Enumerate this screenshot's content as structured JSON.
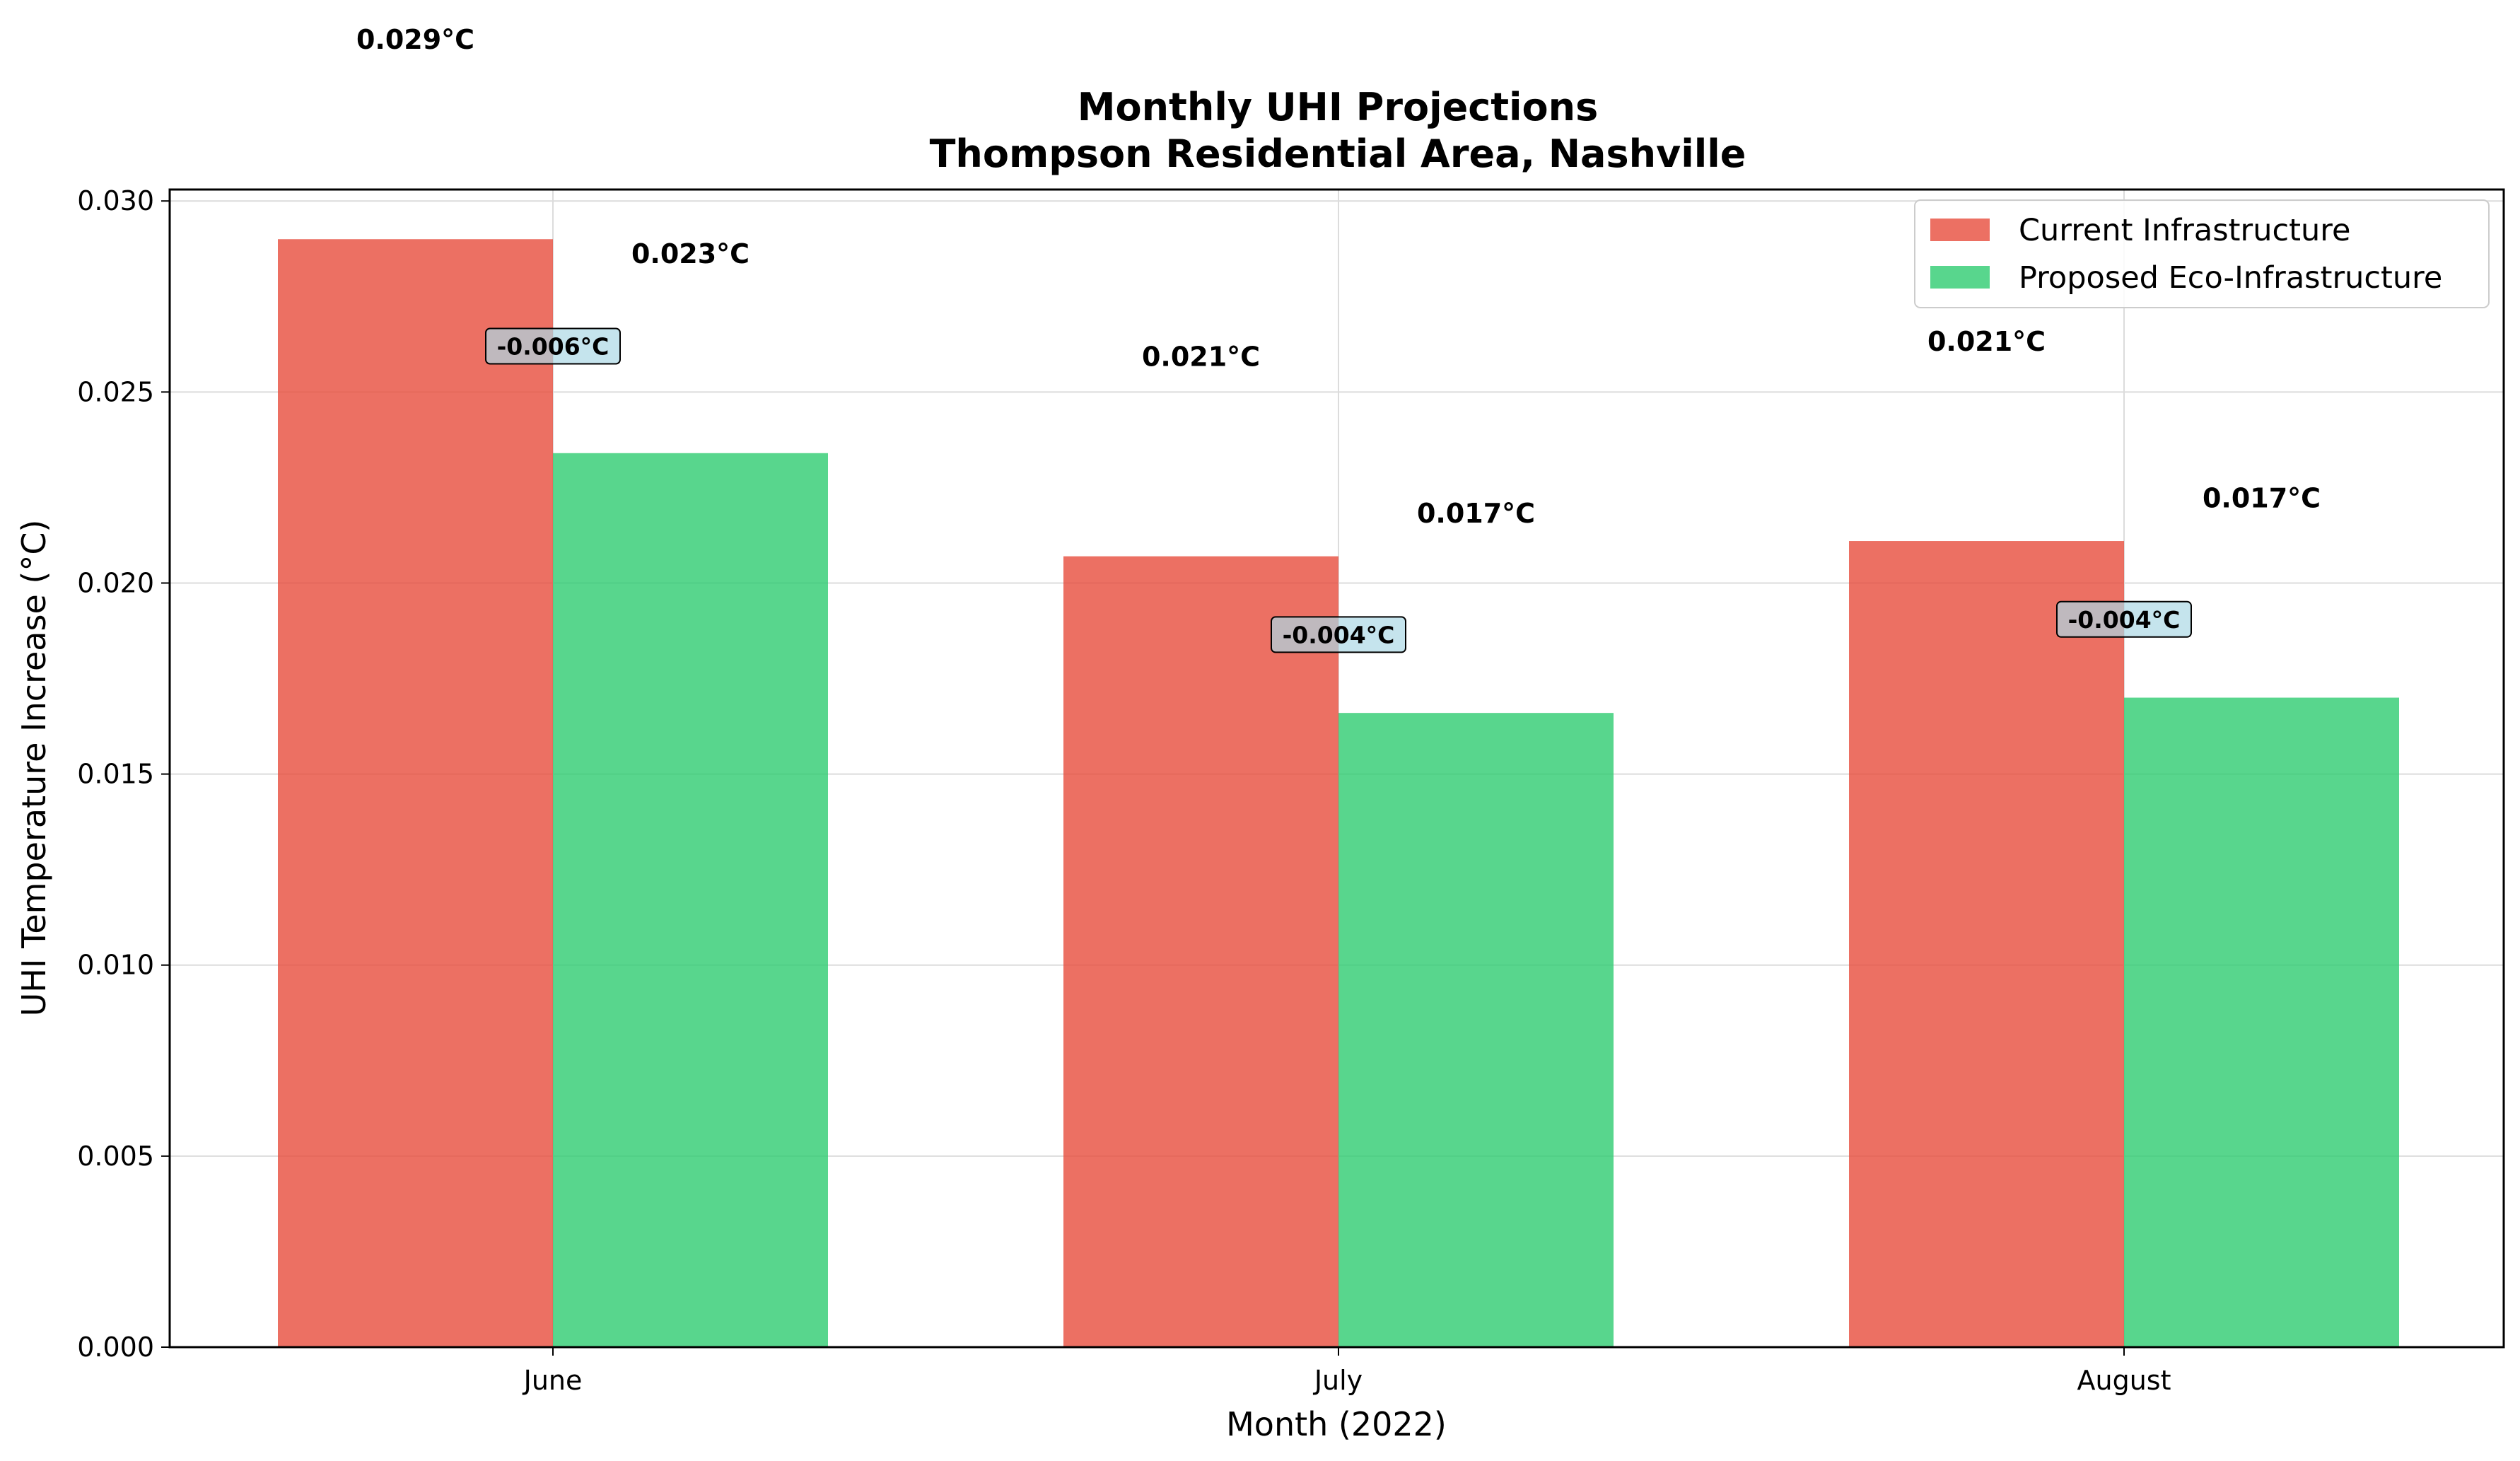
{
  "chart_data": {
    "type": "bar",
    "title": "Monthly UHI Projections",
    "subtitle": "Thompson Residential Area, Nashville",
    "xlabel": "Month (2022)",
    "ylabel": "UHI Temperature Increase (°C)",
    "categories": [
      "June",
      "July",
      "August"
    ],
    "series": [
      {
        "name": "Current Infrastructure",
        "color": "#e74c3c",
        "values": [
          0.029,
          0.0207,
          0.0211
        ],
        "labels": [
          "0.029°C",
          "0.021°C",
          "0.021°C"
        ]
      },
      {
        "name": "Proposed Eco-Infrastructure",
        "color": "#2ecc71",
        "values": [
          0.0234,
          0.0166,
          0.017
        ],
        "labels": [
          "0.023°C",
          "0.017°C",
          "0.017°C"
        ]
      }
    ],
    "differences": [
      "-0.006°C",
      "-0.004°C",
      "-0.004°C"
    ],
    "ylim": [
      0,
      0.0303
    ],
    "yticks": [
      "0.000",
      "0.005",
      "0.010",
      "0.015",
      "0.020",
      "0.025",
      "0.030"
    ],
    "grid": true,
    "legend_position": "top-right"
  }
}
